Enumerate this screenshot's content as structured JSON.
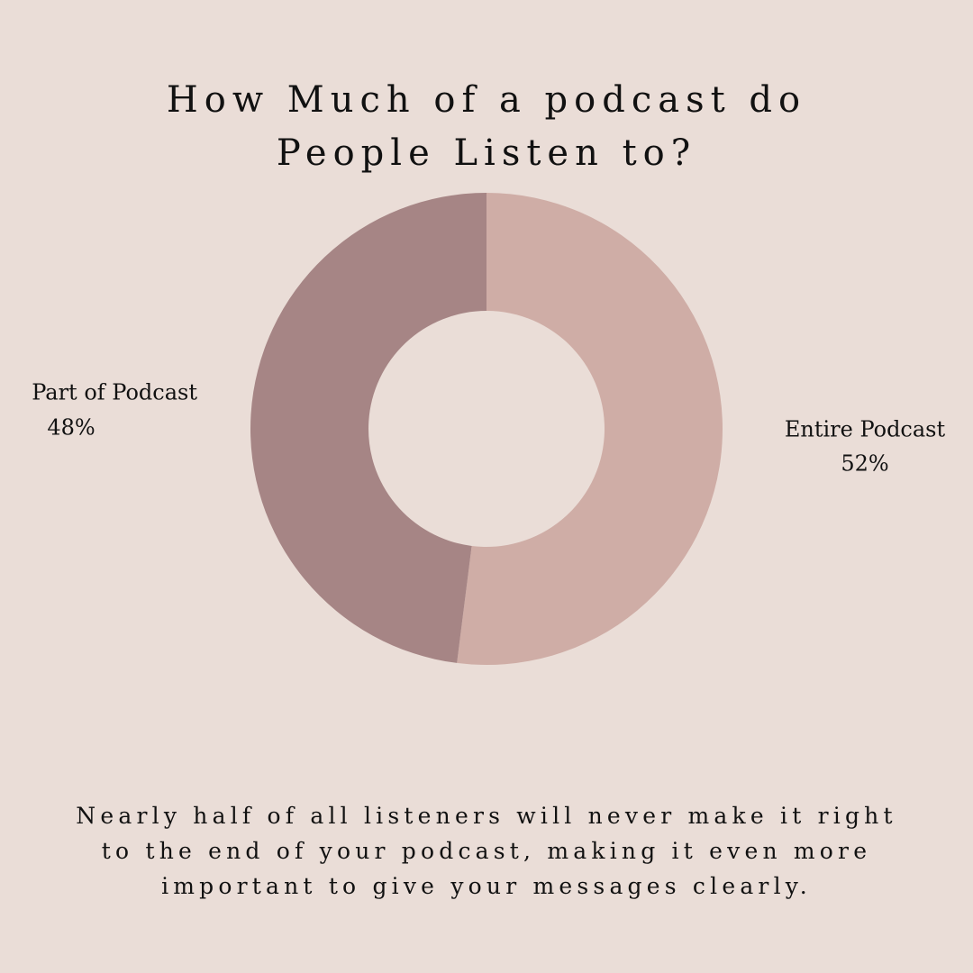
{
  "chart_data": {
    "type": "donut",
    "title": "How Much of a podcast do People Listen to?",
    "caption": "Nearly half of all listeners will never make it right to the end of your podcast, making it even more important to give your messages clearly.",
    "categories": [
      "Entire Podcast",
      "Part of Podcast"
    ],
    "values": [
      52,
      48
    ],
    "value_labels": [
      "52%",
      "48%"
    ],
    "colors": [
      "#cfada6",
      "#a68585"
    ]
  }
}
